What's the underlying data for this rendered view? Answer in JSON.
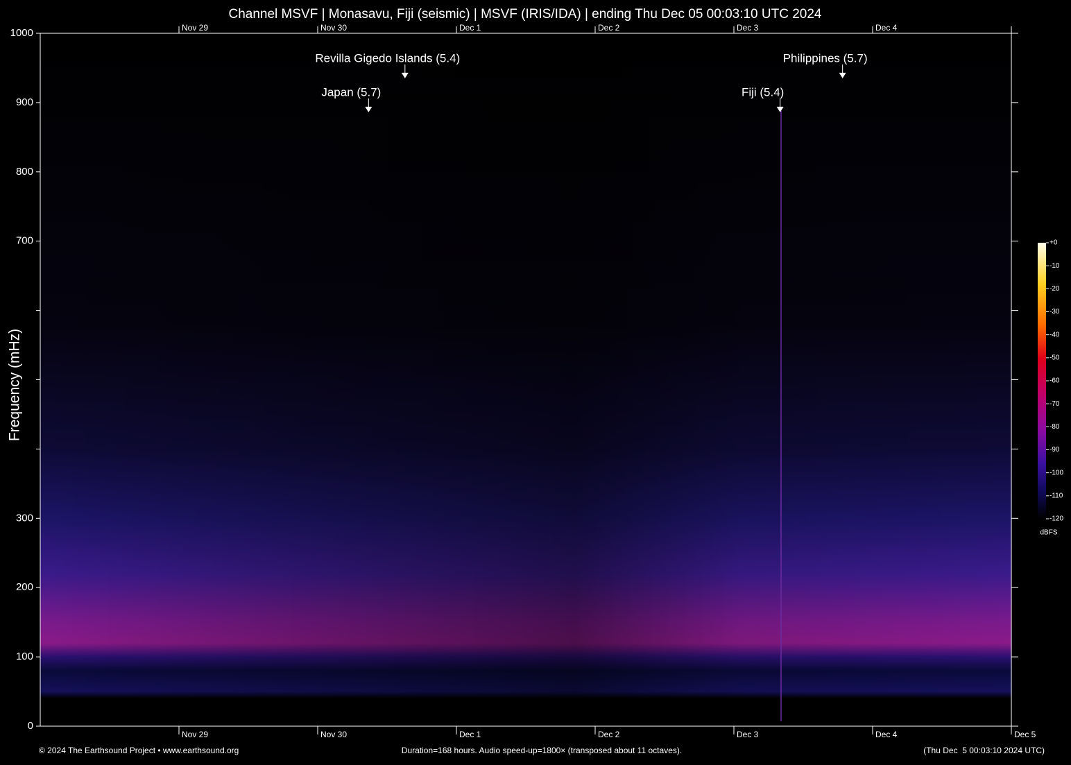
{
  "chart_data": {
    "type": "spectrogram",
    "title": "Channel MSVF | Monasavu, Fiji (seismic) | MSVF (IRIS/IDA) | ending Thu Dec 05 00:03:10 UTC 2024",
    "y_label": "Frequency (mHz)",
    "xlim": [
      0,
      168
    ],
    "xticks": [
      {
        "value": 24,
        "label": "Nov 29"
      },
      {
        "value": 48,
        "label": "Nov 30"
      },
      {
        "value": 72,
        "label": "Dec 1"
      },
      {
        "value": 96,
        "label": "Dec 2"
      },
      {
        "value": 120,
        "label": "Dec 3"
      },
      {
        "value": 144,
        "label": "Dec 4"
      },
      {
        "value": 168,
        "label": "Dec 5"
      }
    ],
    "ylim": [
      0,
      1000
    ],
    "yticks": [
      0,
      100,
      200,
      300,
      {
        "value": 400,
        "label": null
      },
      {
        "value": 500,
        "label": null
      },
      {
        "value": 600,
        "label": null
      },
      700,
      800,
      900,
      1000
    ],
    "events": [
      {
        "label": "Revilla Gigedo Islands (5.4)",
        "x": 63.1,
        "y": 935
      },
      {
        "label": "Japan (5.7)",
        "x": 56.8,
        "y": 886
      },
      {
        "label": "Philippines (5.7)",
        "x": 138.8,
        "y": 935
      },
      {
        "label": "Fiji (5.4)",
        "x": 128,
        "y": 886
      }
    ],
    "colorbar": {
      "label": "dBFS",
      "clim": [
        -120,
        0
      ],
      "ticks": [
        {
          "value": 0,
          "label": "+0"
        },
        -10,
        -20,
        -30,
        -40,
        -50,
        -60,
        -70,
        -80,
        -90,
        -100,
        -110,
        -120
      ]
    },
    "footer": {
      "left": "© 2024 The Earthsound Project • www.earthsound.org",
      "center": "Duration=168 hours. Audio speed-up=1800× (transposed about 11 octaves).",
      "right": "(Thu Dec  5 00:03:10 2024 UTC)"
    }
  }
}
